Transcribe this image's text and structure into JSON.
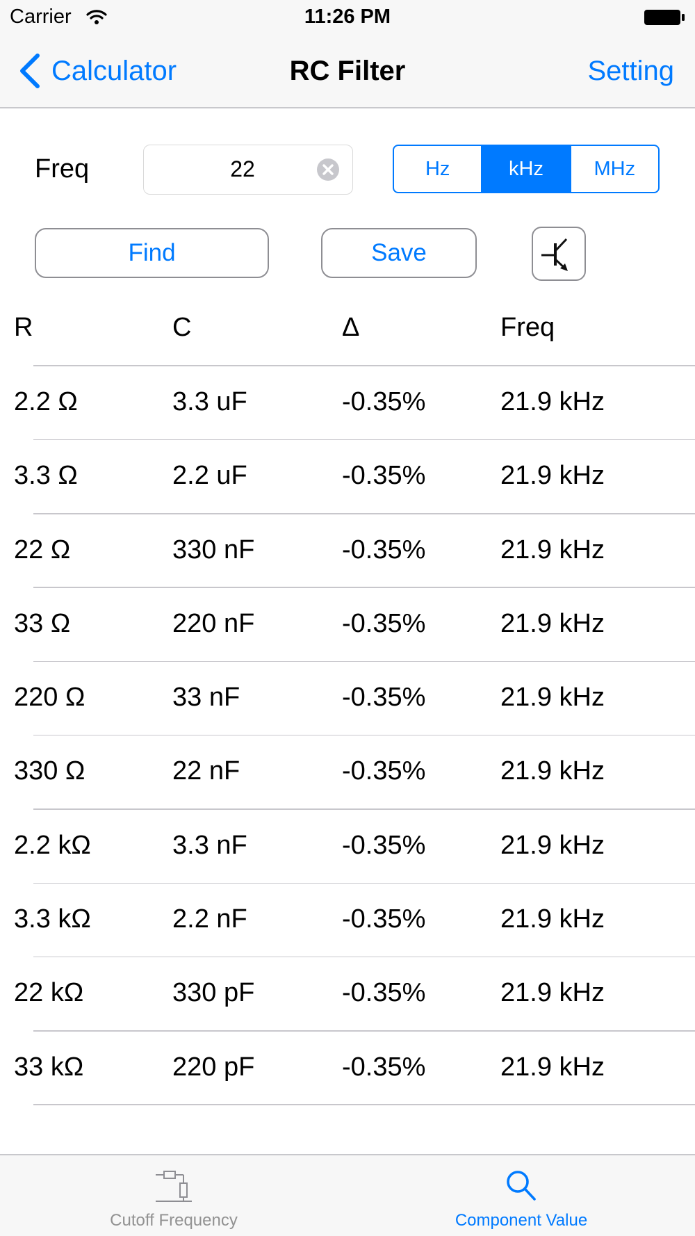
{
  "status_bar": {
    "carrier": "Carrier",
    "time": "11:26 PM"
  },
  "nav": {
    "back_label": "Calculator",
    "title": "RC Filter",
    "setting_label": "Setting"
  },
  "freq_input": {
    "label": "Freq",
    "value": "22"
  },
  "units": {
    "options": [
      "Hz",
      "kHz",
      "MHz"
    ],
    "selected": "kHz"
  },
  "actions": {
    "find_label": "Find",
    "save_label": "Save"
  },
  "table": {
    "headers": {
      "r": "R",
      "c": "C",
      "delta": "Δ",
      "freq": "Freq"
    },
    "rows": [
      {
        "r": "2.2 Ω",
        "c": "3.3 uF",
        "delta": "-0.35%",
        "freq": "21.9 kHz"
      },
      {
        "r": "3.3 Ω",
        "c": "2.2 uF",
        "delta": "-0.35%",
        "freq": "21.9 kHz"
      },
      {
        "r": "22 Ω",
        "c": "330 nF",
        "delta": "-0.35%",
        "freq": "21.9 kHz"
      },
      {
        "r": "33 Ω",
        "c": "220 nF",
        "delta": "-0.35%",
        "freq": "21.9 kHz"
      },
      {
        "r": "220 Ω",
        "c": "33 nF",
        "delta": "-0.35%",
        "freq": "21.9 kHz"
      },
      {
        "r": "330 Ω",
        "c": "22 nF",
        "delta": "-0.35%",
        "freq": "21.9 kHz"
      },
      {
        "r": "2.2 kΩ",
        "c": "3.3 nF",
        "delta": "-0.35%",
        "freq": "21.9 kHz"
      },
      {
        "r": "3.3 kΩ",
        "c": "2.2 nF",
        "delta": "-0.35%",
        "freq": "21.9 kHz"
      },
      {
        "r": "22 kΩ",
        "c": "330 pF",
        "delta": "-0.35%",
        "freq": "21.9 kHz"
      },
      {
        "r": "33 kΩ",
        "c": "220 pF",
        "delta": "-0.35%",
        "freq": "21.9 kHz"
      }
    ]
  },
  "tab_bar": {
    "tabs": [
      {
        "label": "Cutoff Frequency",
        "icon": "resistor-circuit-icon",
        "selected": false
      },
      {
        "label": "Component Value",
        "icon": "search-icon",
        "selected": true
      }
    ]
  },
  "colors": {
    "accent": "#007aff",
    "bar_background": "#f7f7f7",
    "separator": "#c8c7cc",
    "inactive_tab": "#929292"
  }
}
